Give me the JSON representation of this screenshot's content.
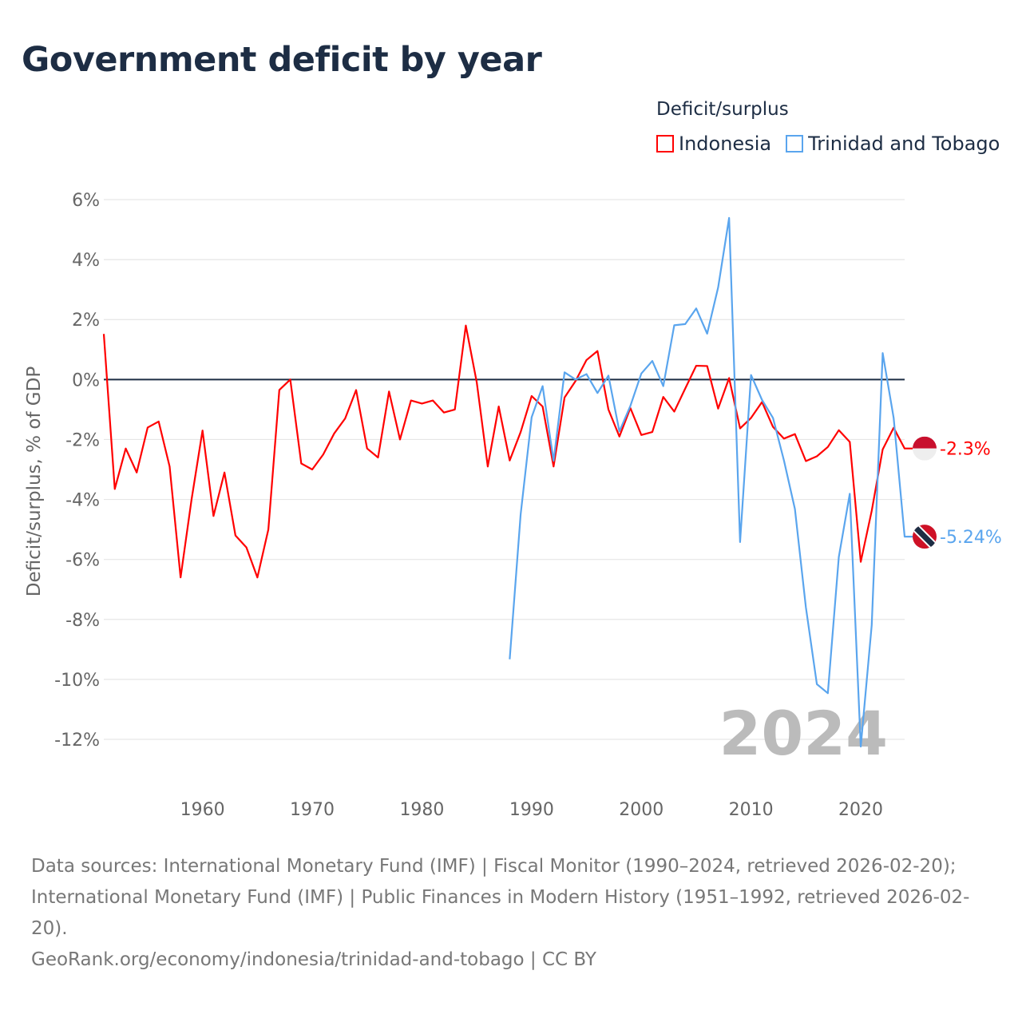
{
  "title": "Government deficit by year",
  "legend": {
    "title": "Deficit/surplus",
    "items": [
      {
        "label": "Indonesia",
        "color": "#ff0000"
      },
      {
        "label": "Trinidad and Tobago",
        "color": "#5aa5ee"
      }
    ]
  },
  "year_watermark": "2024",
  "footer": {
    "sources": "Data sources: International Monetary Fund (IMF) | Fiscal Monitor (1990–2024, retrieved 2026-02-20); International Monetary Fund (IMF) | Public Finances in Modern History (1951–1992, retrieved 2026-02-20).",
    "credit": "GeoRank.org/economy/indonesia/trinidad-and-tobago | CC BY"
  },
  "chart_data": {
    "type": "line",
    "title": "Government deficit by year",
    "xlabel": "",
    "ylabel": "Deficit/surplus, % of GDP",
    "xlim": [
      1951,
      2024
    ],
    "ylim": [
      -12,
      6
    ],
    "x_ticks": [
      1960,
      1970,
      1980,
      1990,
      2000,
      2010,
      2020
    ],
    "y_ticks": [
      6,
      4,
      2,
      0,
      -2,
      -4,
      -6,
      -8,
      -10,
      -12
    ],
    "y_tick_labels": [
      "6%",
      "4%",
      "2%",
      "0%",
      "-2%",
      "-4%",
      "-6%",
      "-8%",
      "-10%",
      "-12%"
    ],
    "grid": true,
    "legend_position": "top-right",
    "series": [
      {
        "name": "Indonesia",
        "color": "#ff0000",
        "end_label": "-2.3%",
        "start_year": 1951,
        "values": [
          1.52,
          -3.65,
          -2.3,
          -3.1,
          -1.6,
          -1.4,
          -2.9,
          -6.6,
          -4.0,
          -1.7,
          -4.55,
          -3.1,
          -5.2,
          -5.6,
          -6.6,
          -5.0,
          -0.35,
          0.0,
          -2.8,
          -3.0,
          -2.5,
          -1.8,
          -1.3,
          -0.35,
          -2.3,
          -2.6,
          -0.4,
          -2.0,
          -0.7,
          -0.8,
          -0.7,
          -1.1,
          -1.0,
          1.8,
          -0.1,
          -2.9,
          -0.9,
          -2.7,
          -1.75,
          -0.55,
          -0.9,
          -2.9,
          -0.6,
          -0.05,
          0.65,
          0.95,
          -1.0,
          -1.9,
          -0.95,
          -1.85,
          -1.75,
          -0.58,
          -1.07,
          -0.3,
          0.46,
          0.45,
          -0.97,
          0.05,
          -1.63,
          -1.28,
          -0.75,
          -1.58,
          -1.97,
          -1.82,
          -2.72,
          -2.56,
          -2.25,
          -1.69,
          -2.08,
          -6.08,
          -4.38,
          -2.33,
          -1.61,
          -2.3
        ]
      },
      {
        "name": "Trinidad and Tobago",
        "color": "#5aa5ee",
        "end_label": "-5.24%",
        "start_year": 1988,
        "values": [
          -9.33,
          -4.49,
          -1.26,
          -0.22,
          -2.71,
          0.24,
          0.0,
          0.18,
          -0.45,
          0.13,
          -1.73,
          -0.88,
          0.2,
          0.62,
          -0.22,
          1.81,
          1.85,
          2.37,
          1.53,
          3.07,
          5.39,
          -5.42,
          0.15,
          -0.68,
          -1.28,
          -2.7,
          -4.32,
          -7.6,
          -10.16,
          -10.46,
          -5.92,
          -3.81,
          -12.24,
          -8.19,
          0.88,
          -1.28,
          -5.24
        ]
      }
    ]
  }
}
